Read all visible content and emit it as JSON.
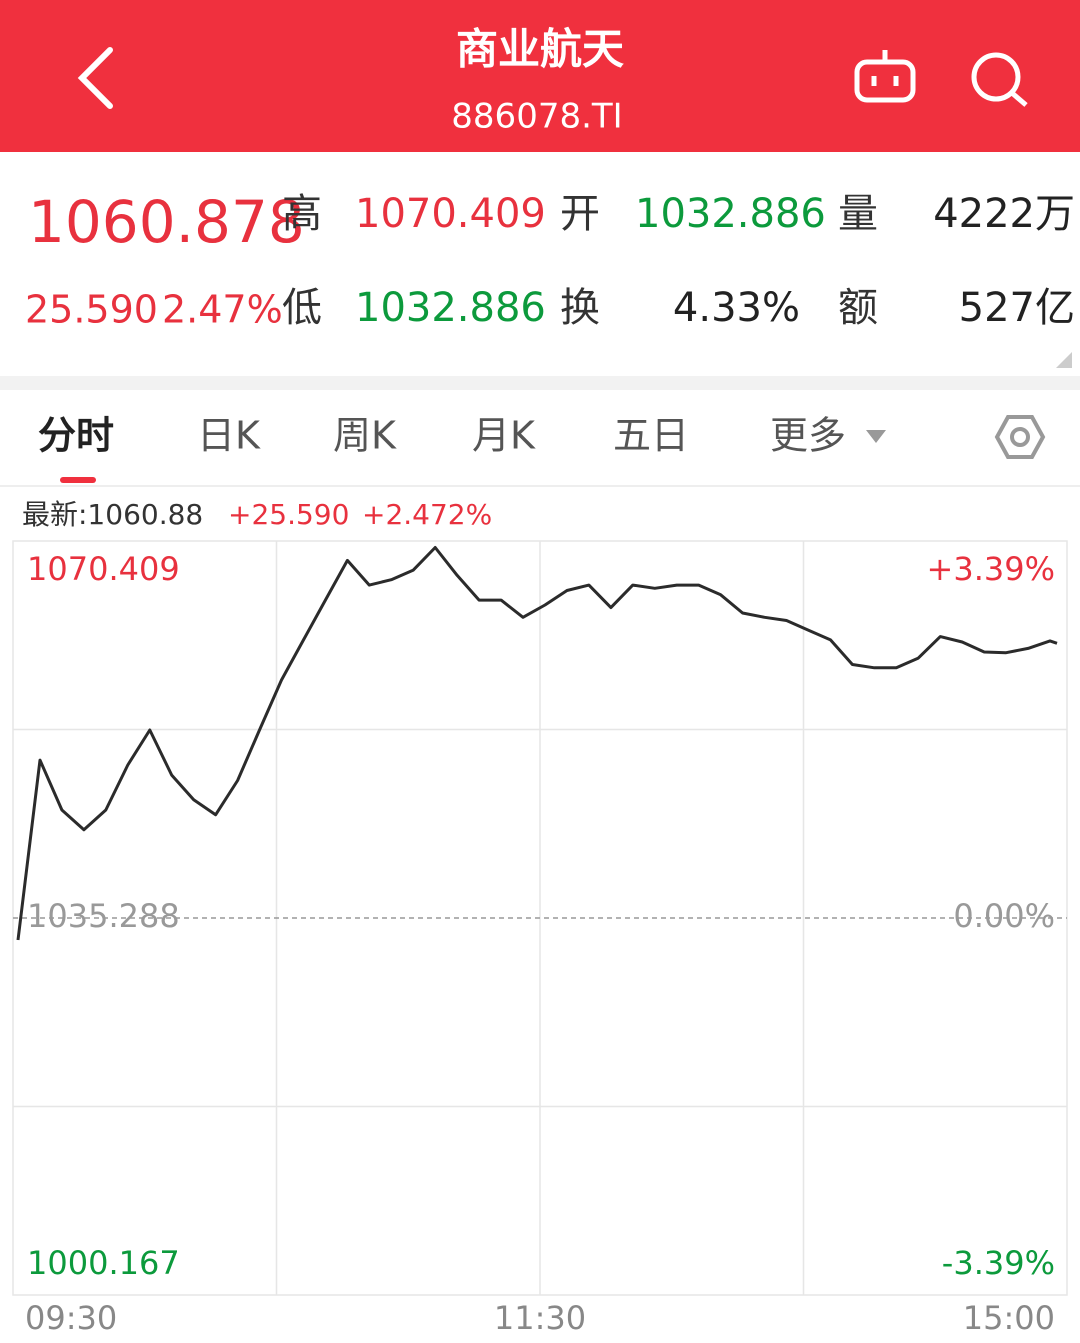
{
  "header": {
    "title": "商业航天",
    "code": "886078.TI"
  },
  "quote": {
    "price": "1060.878",
    "change": "25.590",
    "change_pct": "2.47%",
    "fields": [
      {
        "label": "高",
        "value": "1070.409"
      },
      {
        "label": "开",
        "value": "1032.886"
      },
      {
        "label": "量",
        "value": "4222万"
      },
      {
        "label": "低",
        "value": "1032.886"
      },
      {
        "label": "换",
        "value": "4.33%"
      },
      {
        "label": "额",
        "value": "527亿"
      }
    ]
  },
  "tabs": [
    "分时",
    "日K",
    "周K",
    "月K",
    "五日",
    "更多"
  ],
  "info": {
    "latest": "最新:1060.88",
    "change": "+25.590",
    "change_pct": "+2.472%"
  },
  "chart_data": {
    "type": "line",
    "categories": [
      "09:30",
      null,
      null,
      null,
      null,
      null,
      null,
      null,
      null,
      null,
      null,
      null,
      null,
      null,
      null,
      null,
      null,
      null,
      null,
      null,
      null,
      null,
      null,
      null,
      "11:30",
      null,
      null,
      null,
      null,
      null,
      null,
      null,
      null,
      null,
      null,
      null,
      null,
      null,
      null,
      null,
      null,
      null,
      null,
      null,
      null,
      null,
      null,
      null,
      "15:00"
    ],
    "values": [
      1033.24,
      1050.0,
      1045.35,
      1043.5,
      1045.35,
      1049.54,
      1052.8,
      1048.6,
      1046.3,
      1044.9,
      1048.1,
      1052.8,
      1057.46,
      1061.2,
      1064.9,
      1068.6,
      1066.3,
      1066.8,
      1067.7,
      1069.8,
      1067.2,
      1064.9,
      1064.9,
      1063.3,
      1064.45,
      1065.8,
      1066.3,
      1064.2,
      1066.3,
      1066.0,
      1066.3,
      1066.3,
      1065.4,
      1063.7,
      1063.3,
      1063.0,
      1062.1,
      1061.2,
      1058.9,
      1058.6,
      1058.6,
      1059.5,
      1061.5,
      1061.0,
      1060.07,
      1060.0,
      1060.4,
      1061.1,
      1060.878
    ],
    "color": "#2b2b2b",
    "ylim": [
      1000.167,
      1070.409
    ],
    "yticks": [
      1070.409,
      1035.288,
      1000.167
    ],
    "y2lim": [
      -3.39,
      3.39
    ],
    "y2ticks": [
      {
        "value": 3.39,
        "label": "+3.39%"
      },
      {
        "value": 0,
        "label": "0.00%"
      },
      {
        "value": -3.39,
        "label": "-3.39%"
      }
    ],
    "up_color": "#e8313e",
    "down_color": "#0c9a3c",
    "flat_color": "#999999"
  }
}
